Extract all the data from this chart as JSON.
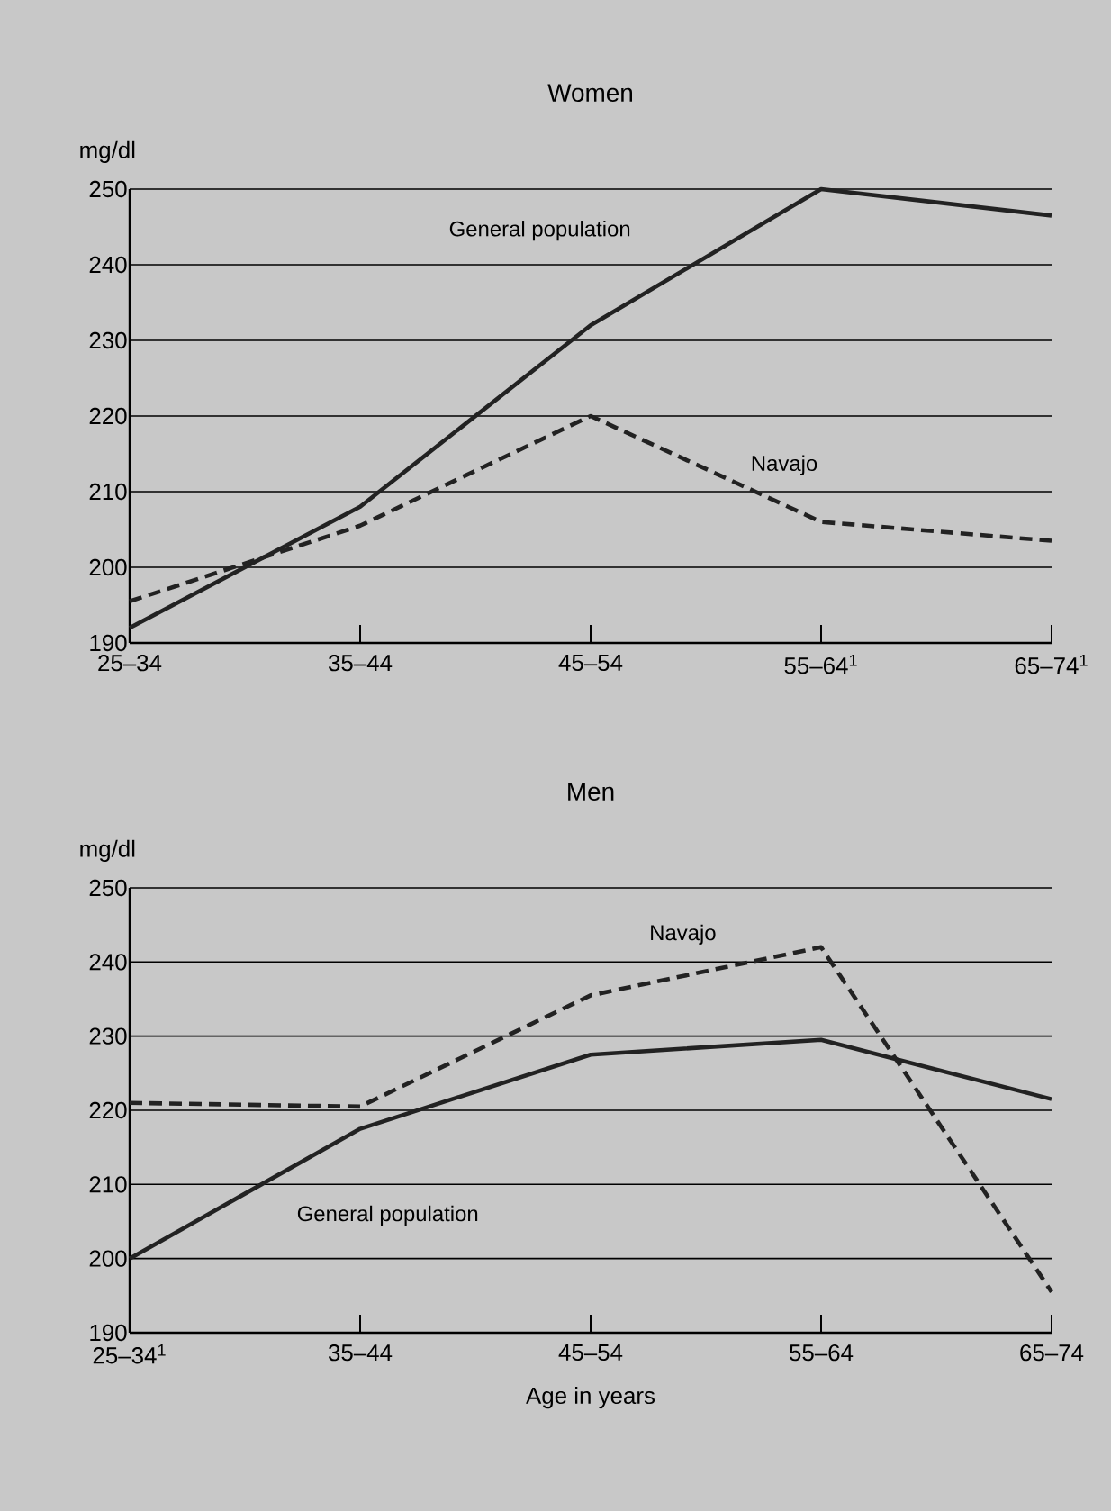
{
  "chart_data": [
    {
      "type": "line",
      "title": "Women",
      "ylabel": "mg/dl",
      "categories": [
        "25–34",
        "35–44",
        "45–54",
        "55–64$^{1}$",
        "65–74$^{1}$"
      ],
      "ylim": [
        190,
        250
      ],
      "yticks": [
        190,
        200,
        210,
        220,
        230,
        240,
        250
      ],
      "grid": "y",
      "series": [
        {
          "name": "General population",
          "color": "#222222",
          "line_style": "solid",
          "values": [
            192,
            208,
            232,
            250,
            246.5
          ]
        },
        {
          "name": "Navajo",
          "color": "#222222",
          "line_style": "dashed",
          "values": [
            195.5,
            205.5,
            220,
            206,
            203.5
          ]
        }
      ]
    },
    {
      "type": "line",
      "title": "Men",
      "ylabel": "mg/dl",
      "xlabel": "Age in years",
      "categories": [
        "25–34$^{1}$",
        "35–44",
        "45–54",
        "55–64",
        "65–74"
      ],
      "ylim": [
        190,
        250
      ],
      "yticks": [
        190,
        200,
        210,
        220,
        230,
        240,
        250
      ],
      "grid": "y",
      "series": [
        {
          "name": "General population",
          "color": "#222222",
          "line_style": "solid",
          "values": [
            200,
            217.5,
            227.5,
            229.5,
            221.5
          ]
        },
        {
          "name": "Navajo",
          "color": "#222222",
          "line_style": "dashed",
          "values": [
            221,
            220.5,
            235.5,
            242,
            195.5
          ]
        }
      ]
    }
  ]
}
